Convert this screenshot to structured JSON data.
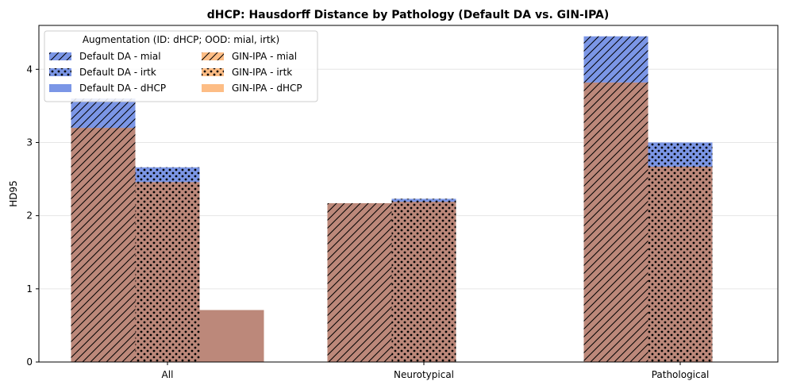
{
  "chart_data": {
    "type": "bar",
    "title": "dHCP: Hausdorff Distance by Pathology (Default DA vs. GIN-IPA)",
    "xlabel": "",
    "ylabel": "HD95",
    "categories": [
      "All",
      "Neurotypical",
      "Pathological"
    ],
    "ylim": [
      0,
      4.6
    ],
    "yticks": [
      "0",
      "1",
      "2",
      "3",
      "4"
    ],
    "grid": "horizontal",
    "legend_title": "Augmentation (ID: dHCP; OOD: mial, irtk)",
    "legend_position": "upper-left",
    "colors": {
      "default": "#7b96e6",
      "gin": "#fdbd85",
      "overlap": "#bc887a"
    },
    "series": [
      {
        "name": "Default DA - mial",
        "group": "Default DA",
        "test": "mial",
        "hatch": "diagonal",
        "values": [
          3.6,
          2.17,
          4.45
        ]
      },
      {
        "name": "Default DA - irtk",
        "group": "Default DA",
        "test": "irtk",
        "hatch": "dots",
        "values": [
          2.66,
          2.23,
          3.0
        ]
      },
      {
        "name": "Default DA - dHCP",
        "group": "Default DA",
        "test": "dHCP",
        "hatch": "none",
        "values": [
          0.71,
          null,
          null
        ]
      },
      {
        "name": "GIN-IPA - mial",
        "group": "GIN-IPA",
        "test": "mial",
        "hatch": "diagonal",
        "values": [
          3.2,
          2.17,
          3.82
        ]
      },
      {
        "name": "GIN-IPA - irtk",
        "group": "GIN-IPA",
        "test": "irtk",
        "hatch": "dots",
        "values": [
          2.46,
          2.19,
          2.67
        ]
      },
      {
        "name": "GIN-IPA - dHCP",
        "group": "GIN-IPA",
        "test": "dHCP",
        "hatch": "none",
        "values": [
          0.71,
          null,
          null
        ]
      }
    ]
  }
}
